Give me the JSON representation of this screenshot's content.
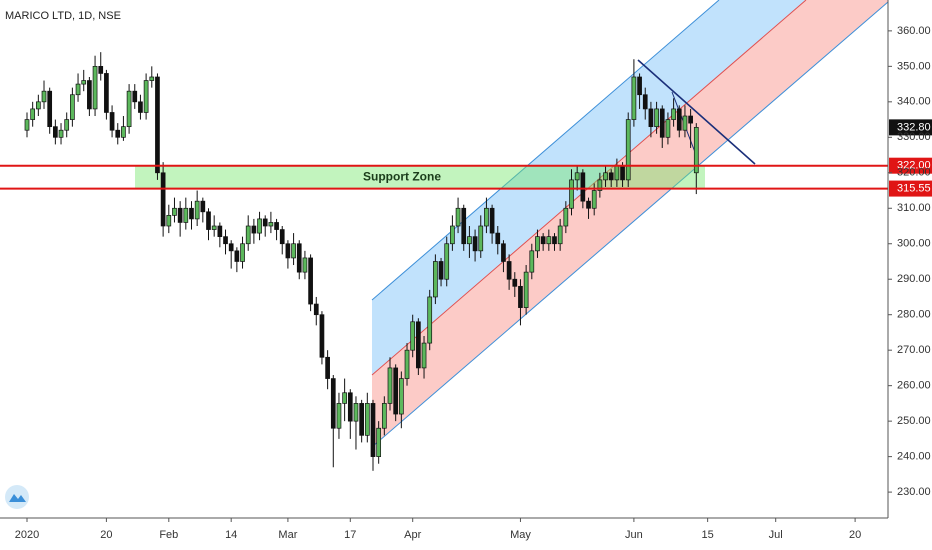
{
  "chart_data": {
    "type": "candlestick",
    "title": "MARICO LTD, 1D, NSE",
    "x": [
      0,
      1,
      2,
      3,
      4,
      5,
      6,
      7,
      8,
      9,
      10,
      11,
      12,
      13,
      14,
      15,
      16,
      17,
      18,
      19,
      20,
      21,
      22,
      23,
      24,
      25,
      26,
      27,
      28,
      29,
      30,
      31,
      32,
      33,
      34,
      35,
      36,
      37,
      38,
      39,
      40,
      41,
      42,
      43,
      44,
      45,
      46,
      47,
      48,
      49,
      50,
      51,
      52,
      53,
      54,
      55,
      56,
      57,
      58,
      59,
      60,
      61,
      62,
      63,
      64,
      65,
      66,
      67,
      68,
      69,
      70,
      71,
      72,
      73,
      74,
      75,
      76,
      77,
      78,
      79,
      80,
      81,
      82,
      83,
      84,
      85,
      86,
      87,
      88,
      89,
      90,
      91,
      92,
      93,
      94,
      95,
      96,
      97,
      98,
      99,
      100,
      101,
      102,
      103,
      104,
      105,
      106,
      107,
      108,
      109,
      110,
      111,
      112,
      113,
      114,
      115,
      116,
      117,
      118
    ],
    "candles": [
      [
        332,
        337,
        330,
        335
      ],
      [
        335,
        340,
        333,
        338
      ],
      [
        338,
        342,
        336,
        340
      ],
      [
        340,
        346,
        338,
        343
      ],
      [
        343,
        344,
        331,
        333
      ],
      [
        333,
        335,
        328,
        330
      ],
      [
        330,
        334,
        328,
        332
      ],
      [
        332,
        337,
        330,
        335
      ],
      [
        335,
        344,
        333,
        342
      ],
      [
        342,
        348,
        340,
        345
      ],
      [
        345,
        349,
        343,
        346
      ],
      [
        346,
        347,
        336,
        338
      ],
      [
        338,
        353,
        336,
        350
      ],
      [
        350,
        354,
        346,
        348
      ],
      [
        348,
        349,
        335,
        337
      ],
      [
        337,
        339,
        330,
        332
      ],
      [
        332,
        334,
        328,
        330
      ],
      [
        330,
        336,
        329,
        333
      ],
      [
        333,
        345,
        331,
        343
      ],
      [
        343,
        345,
        338,
        340
      ],
      [
        340,
        342,
        335,
        337
      ],
      [
        337,
        348,
        335,
        346
      ],
      [
        346,
        350,
        344,
        347
      ],
      [
        347,
        348,
        318,
        320
      ],
      [
        320,
        323,
        302,
        305
      ],
      [
        305,
        311,
        303,
        308
      ],
      [
        308,
        313,
        306,
        310
      ],
      [
        310,
        312,
        302,
        306
      ],
      [
        306,
        313,
        304,
        310
      ],
      [
        310,
        312,
        304,
        307
      ],
      [
        307,
        315,
        305,
        312
      ],
      [
        312,
        313,
        306,
        309
      ],
      [
        309,
        310,
        301,
        304
      ],
      [
        304,
        308,
        302,
        305
      ],
      [
        305,
        306,
        299,
        302
      ],
      [
        302,
        304,
        297,
        300
      ],
      [
        300,
        301,
        293,
        298
      ],
      [
        298,
        299,
        292,
        295
      ],
      [
        295,
        302,
        293,
        300
      ],
      [
        300,
        308,
        298,
        305
      ],
      [
        305,
        307,
        300,
        303
      ],
      [
        303,
        309,
        301,
        307
      ],
      [
        307,
        308,
        302,
        305
      ],
      [
        305,
        309,
        303,
        306
      ],
      [
        306,
        307,
        301,
        304
      ],
      [
        304,
        305,
        297,
        300
      ],
      [
        300,
        301,
        293,
        296
      ],
      [
        296,
        303,
        294,
        300
      ],
      [
        300,
        301,
        290,
        292
      ],
      [
        292,
        298,
        290,
        296
      ],
      [
        296,
        297,
        281,
        283
      ],
      [
        283,
        285,
        277,
        280
      ],
      [
        280,
        281,
        266,
        268
      ],
      [
        268,
        270,
        259,
        262
      ],
      [
        262,
        263,
        237,
        248
      ],
      [
        248,
        258,
        245,
        255
      ],
      [
        255,
        262,
        250,
        258
      ],
      [
        258,
        259,
        245,
        250
      ],
      [
        250,
        257,
        242,
        255
      ],
      [
        255,
        256,
        244,
        246
      ],
      [
        246,
        258,
        244,
        255
      ],
      [
        255,
        256,
        236,
        240
      ],
      [
        240,
        250,
        238,
        248
      ],
      [
        248,
        257,
        246,
        255
      ],
      [
        255,
        268,
        253,
        265
      ],
      [
        265,
        266,
        250,
        252
      ],
      [
        252,
        264,
        248,
        262
      ],
      [
        262,
        272,
        260,
        270
      ],
      [
        270,
        280,
        268,
        278
      ],
      [
        278,
        279,
        263,
        265
      ],
      [
        265,
        274,
        262,
        272
      ],
      [
        272,
        287,
        270,
        285
      ],
      [
        285,
        297,
        283,
        295
      ],
      [
        295,
        296,
        288,
        290
      ],
      [
        290,
        302,
        288,
        300
      ],
      [
        300,
        308,
        298,
        305
      ],
      [
        305,
        313,
        303,
        310
      ],
      [
        310,
        311,
        298,
        300
      ],
      [
        300,
        305,
        296,
        302
      ],
      [
        302,
        304,
        295,
        298
      ],
      [
        298,
        308,
        296,
        305
      ],
      [
        305,
        313,
        303,
        310
      ],
      [
        310,
        311,
        300,
        303
      ],
      [
        303,
        305,
        297,
        300
      ],
      [
        300,
        301,
        292,
        295
      ],
      [
        295,
        297,
        287,
        290
      ],
      [
        290,
        292,
        285,
        288
      ],
      [
        288,
        290,
        277,
        282
      ],
      [
        282,
        294,
        280,
        292
      ],
      [
        292,
        300,
        290,
        298
      ],
      [
        298,
        304,
        296,
        302
      ],
      [
        302,
        303,
        298,
        300
      ],
      [
        300,
        304,
        298,
        302
      ],
      [
        302,
        303,
        298,
        300
      ],
      [
        300,
        307,
        298,
        305
      ],
      [
        305,
        312,
        303,
        310
      ],
      [
        310,
        321,
        308,
        318
      ],
      [
        318,
        322,
        315,
        320
      ],
      [
        320,
        321,
        310,
        312
      ],
      [
        312,
        313,
        307,
        310
      ],
      [
        310,
        317,
        308,
        315
      ],
      [
        315,
        320,
        313,
        318
      ],
      [
        318,
        322,
        316,
        320
      ],
      [
        320,
        321,
        316,
        318
      ],
      [
        318,
        324,
        316,
        322
      ],
      [
        322,
        323,
        316,
        318
      ],
      [
        318,
        337,
        316,
        335
      ],
      [
        335,
        352,
        333,
        347
      ],
      [
        347,
        348,
        338,
        342
      ],
      [
        342,
        344,
        335,
        338
      ],
      [
        338,
        340,
        330,
        333
      ],
      [
        333,
        340,
        331,
        338
      ],
      [
        338,
        339,
        327,
        330
      ],
      [
        330,
        337,
        328,
        335
      ],
      [
        335,
        341,
        333,
        338
      ],
      [
        338,
        339,
        330,
        332
      ],
      [
        332,
        339,
        330,
        336
      ],
      [
        336,
        338,
        327,
        334
      ],
      [
        320,
        334,
        314,
        332.8
      ]
    ],
    "up_color": "#5cb85c",
    "down_color": "#111111",
    "xlim": [
      -4.76,
      151.8
    ],
    "xticks": [
      {
        "value": 0,
        "label": "2020"
      },
      {
        "value": 14,
        "label": "20"
      },
      {
        "value": 25,
        "label": "Feb"
      },
      {
        "value": 36,
        "label": "14"
      },
      {
        "value": 46,
        "label": "Mar"
      },
      {
        "value": 57,
        "label": "17"
      },
      {
        "value": 68,
        "label": "Apr"
      },
      {
        "value": 87,
        "label": "May"
      },
      {
        "value": 107,
        "label": "Jun"
      },
      {
        "value": 120,
        "label": "15"
      },
      {
        "value": 132,
        "label": "Jul"
      },
      {
        "value": 146,
        "label": "20"
      }
    ],
    "ylim": [
      222.7,
      368.7
    ],
    "yticks": [
      {
        "value": 230,
        "label": "230.00"
      },
      {
        "value": 240,
        "label": "240.00"
      },
      {
        "value": 250,
        "label": "250.00"
      },
      {
        "value": 260,
        "label": "260.00"
      },
      {
        "value": 270,
        "label": "270.00"
      },
      {
        "value": 280,
        "label": "280.00"
      },
      {
        "value": 290,
        "label": "290.00"
      },
      {
        "value": 300,
        "label": "300.00"
      },
      {
        "value": 310,
        "label": "310.00"
      },
      {
        "value": 320,
        "label": "320.00"
      },
      {
        "value": 330,
        "label": "330.00"
      },
      {
        "value": 340,
        "label": "340.00"
      },
      {
        "value": 350,
        "label": "350.00"
      },
      {
        "value": 360,
        "label": "360.00"
      }
    ],
    "levels": [
      {
        "value": 322,
        "label": "322.00"
      },
      {
        "value": 315.55,
        "label": "315.55"
      }
    ],
    "level_color": "#e01515",
    "zone_label": "Support Zone",
    "last_price": {
      "value": 332.8,
      "label": "332.80"
    }
  }
}
